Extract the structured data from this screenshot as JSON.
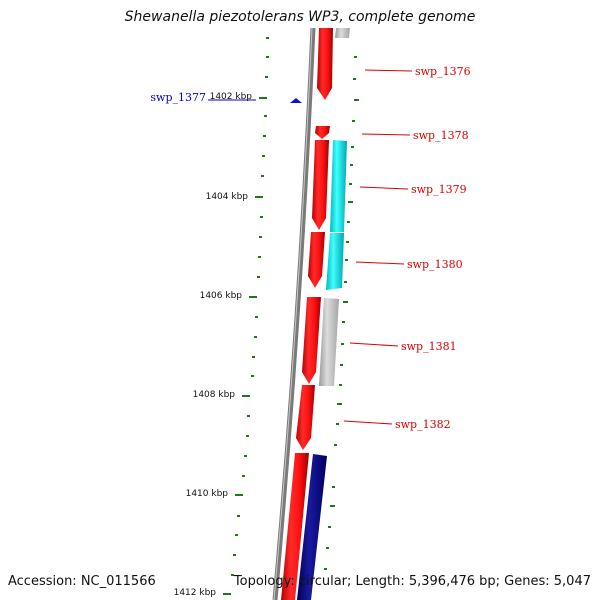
{
  "title": "Shewanella piezotolerans WP3, complete genome",
  "accession_text": "Accession: NC_011566",
  "summary_text": "Topology: circular; Length: 5,396,476 bp; Genes: 5,047",
  "colors": {
    "forward_strand": "#ee1111",
    "cyan_feature": "#22e5e8",
    "grey_feature": "#b8b8b8",
    "navy_feature": "#0a0a80",
    "backbone": "#7a7a7a",
    "tick": "#1a7a1a",
    "label_forward": "#dd0000",
    "label_reverse": "#0000cc"
  },
  "scale": {
    "ticks": [
      {
        "label": "1402 kbp",
        "kbp": 1402
      },
      {
        "label": "1404 kbp",
        "kbp": 1404
      },
      {
        "label": "1406 kbp",
        "kbp": 1406
      },
      {
        "label": "1408 kbp",
        "kbp": 1408
      },
      {
        "label": "1410 kbp",
        "kbp": 1410
      },
      {
        "label": "1412 kbp",
        "kbp": 1412
      }
    ]
  },
  "genes": [
    {
      "name": "swp_1376",
      "strand": "forward",
      "color_key": "label_forward"
    },
    {
      "name": "swp_1377",
      "strand": "reverse",
      "color_key": "label_reverse"
    },
    {
      "name": "swp_1378",
      "strand": "forward",
      "color_key": "label_forward"
    },
    {
      "name": "swp_1379",
      "strand": "forward",
      "color_key": "label_forward"
    },
    {
      "name": "swp_1380",
      "strand": "forward",
      "color_key": "label_forward"
    },
    {
      "name": "swp_1381",
      "strand": "forward",
      "color_key": "label_forward"
    },
    {
      "name": "swp_1382",
      "strand": "forward",
      "color_key": "label_forward"
    }
  ]
}
